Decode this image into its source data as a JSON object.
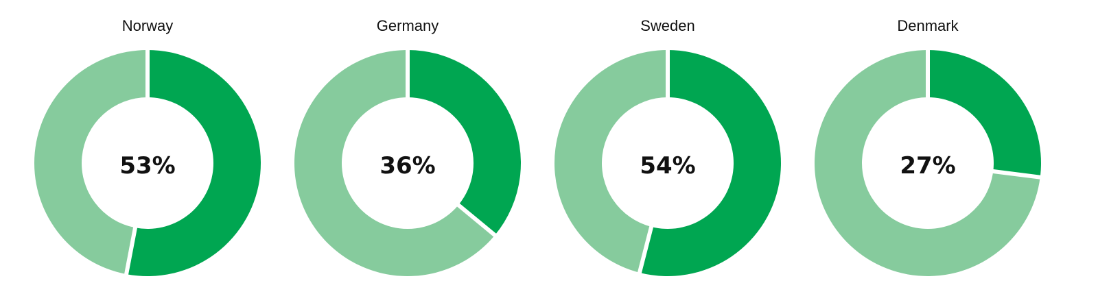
{
  "colors": {
    "value_slice": "#00a651",
    "remainder_slice": "#86cb9d",
    "separator": "#ffffff",
    "text": "#111111"
  },
  "chart_data": [
    {
      "type": "pie",
      "title": "Norway",
      "value": 53,
      "label": "53%",
      "slices": [
        {
          "value": 53,
          "color": "#00a651"
        },
        {
          "value": 47,
          "color": "#86cb9d"
        }
      ]
    },
    {
      "type": "pie",
      "title": "Germany",
      "value": 36,
      "label": "36%",
      "slices": [
        {
          "value": 36,
          "color": "#00a651"
        },
        {
          "value": 64,
          "color": "#86cb9d"
        }
      ]
    },
    {
      "type": "pie",
      "title": "Sweden",
      "value": 54,
      "label": "54%",
      "slices": [
        {
          "value": 54,
          "color": "#00a651"
        },
        {
          "value": 46,
          "color": "#86cb9d"
        }
      ]
    },
    {
      "type": "pie",
      "title": "Denmark",
      "value": 27,
      "label": "27%",
      "slices": [
        {
          "value": 27,
          "color": "#00a651"
        },
        {
          "value": 73,
          "color": "#86cb9d"
        }
      ]
    }
  ]
}
